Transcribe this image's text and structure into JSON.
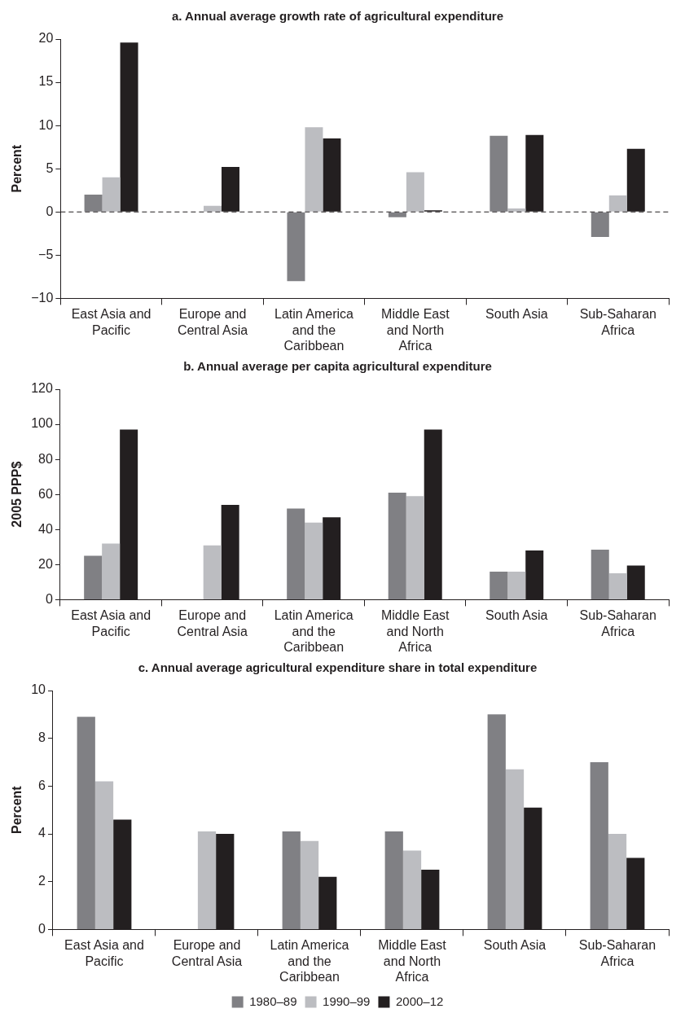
{
  "chart_data": [
    {
      "type": "bar",
      "title": "a. Annual average growth rate of agricultural expenditure",
      "ylabel": "Percent",
      "categories": [
        "East Asia and Pacific",
        "Europe and Central Asia",
        "Latin America and the Caribbean",
        "Middle East and North Africa",
        "South Asia",
        "Sub-Saharan Africa"
      ],
      "series": [
        {
          "color": "#808084",
          "values": [
            2,
            null,
            -8,
            -0.6,
            8.8,
            -2.9
          ]
        },
        {
          "color": "#bcbdc1",
          "values": [
            4,
            0.7,
            9.8,
            4.6,
            0.4,
            1.9
          ]
        },
        {
          "color": "#231f20",
          "values": [
            19.6,
            5.2,
            8.5,
            0.2,
            8.9,
            7.3
          ]
        }
      ],
      "ylim": [
        -10,
        20
      ],
      "yticks": [
        -10,
        -5,
        0,
        5,
        10,
        15,
        20
      ],
      "grid": false,
      "legend": false,
      "ref_lines": [
        {
          "axis": "y",
          "value": 0,
          "line_style": "dashed",
          "color": "#231f20"
        }
      ]
    },
    {
      "type": "bar",
      "title": "b. Annual average per capita agricultural expenditure",
      "ylabel": "2005 PPP$",
      "categories": [
        "East Asia and Pacific",
        "Europe and Central Asia",
        "Latin America and the Caribbean",
        "Middle East and North Africa",
        "South Asia",
        "Sub-Saharan Africa"
      ],
      "series": [
        {
          "color": "#808084",
          "values": [
            25,
            null,
            52,
            61,
            16,
            28.5
          ]
        },
        {
          "color": "#bcbdc1",
          "values": [
            32,
            31,
            44,
            59,
            16,
            15
          ]
        },
        {
          "color": "#231f20",
          "values": [
            97,
            54,
            47,
            97,
            28,
            19.5
          ]
        }
      ],
      "ylim": [
        0,
        120
      ],
      "yticks": [
        0,
        20,
        40,
        60,
        80,
        100,
        120
      ],
      "grid": false,
      "legend": false
    },
    {
      "type": "bar",
      "title": "c. Annual average agricultural expenditure share in total expenditure",
      "ylabel": "Percent",
      "categories": [
        "East Asia and Pacific",
        "Europe and Central Asia",
        "Latin America and the Caribbean",
        "Middle East and North Africa",
        "South Asia",
        "Sub-Saharan Africa"
      ],
      "series": [
        {
          "name": "1980–89",
          "color": "#808084",
          "values": [
            8.9,
            null,
            4.1,
            4.1,
            9.0,
            7.0
          ]
        },
        {
          "name": "1990–99",
          "color": "#bcbdc1",
          "values": [
            6.2,
            4.1,
            3.7,
            3.3,
            6.7,
            4.0
          ]
        },
        {
          "name": "2000–12",
          "color": "#231f20",
          "values": [
            4.6,
            4.0,
            2.2,
            2.5,
            5.1,
            3.0
          ]
        }
      ],
      "ylim": [
        0,
        10
      ],
      "yticks": [
        0,
        2,
        4,
        6,
        8,
        10
      ],
      "grid": false,
      "legend": "bottom"
    }
  ]
}
